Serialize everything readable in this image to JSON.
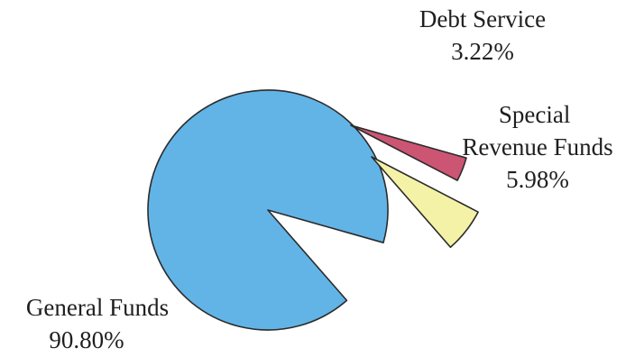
{
  "chart_data": {
    "type": "pie",
    "exploded": true,
    "slices": [
      {
        "label": "General Funds",
        "value": 90.8,
        "display": "90.80%",
        "color": "#62b4e6"
      },
      {
        "label": "Debt Service",
        "value": 3.22,
        "display": "3.22%",
        "color": "#cc5573"
      },
      {
        "label": "Special Revenue Funds",
        "value": 5.98,
        "display": "5.98%",
        "color": "#f4f2a6"
      }
    ]
  }
}
